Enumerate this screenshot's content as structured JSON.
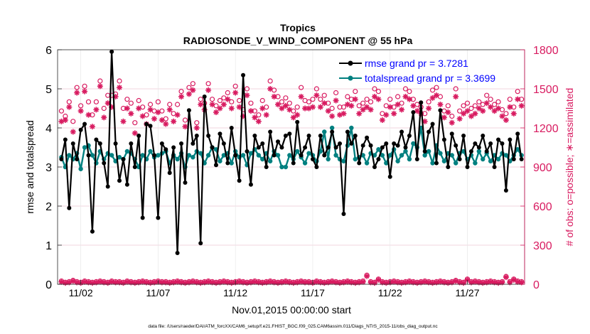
{
  "chart_data": {
    "type": "line",
    "title": "Tropics",
    "subtitle": "RADIOSONDE_V_WIND_COMPONENT @ 55 hPa",
    "xlabel": "Nov.01,2015 00:00:00 start",
    "ylabel_left": "rmse and totalspread",
    "ylabel_right": "# of obs: o=possible; ∗=assimilated",
    "footer": "data file: /Users/raeder/DAI/ATM_forcXX/CAM6_setup/f.e21.FHIST_BGC.f09_025.CAM6assim.011/Diags_NTrS_2015-11/obs_diag_output.nc",
    "x_range": [
      0.5,
      30.7
    ],
    "ylim_left": [
      0,
      6
    ],
    "ylim_right": [
      0,
      1800
    ],
    "x_tick_values": [
      2,
      7,
      12,
      17,
      22,
      27
    ],
    "x_tick_labels": [
      "11/02",
      "11/07",
      "11/12",
      "11/17",
      "11/22",
      "11/27"
    ],
    "y_ticks_left": [
      "0",
      "1",
      "2",
      "3",
      "4",
      "5",
      "6"
    ],
    "y_ticks_right": [
      "0",
      "300",
      "600",
      "900",
      "1200",
      "1500",
      "1800"
    ],
    "legend_position": "top-right",
    "colors": {
      "rmse": "#000000",
      "spread": "#008080",
      "obs": "#d81b60",
      "right_axis": "#d81b60",
      "legend_text": "#0000ff"
    },
    "series": [
      {
        "name": "rmse grand pr = 3.7281",
        "color": "#000000",
        "values": [
          3.2,
          3.7,
          1.95,
          3.6,
          3.2,
          3.95,
          4.1,
          3.3,
          1.35,
          3.7,
          3.6,
          3.1,
          2.5,
          5.95,
          3.6,
          2.65,
          3.2,
          2.55,
          3.6,
          3.0,
          3.8,
          1.7,
          4.1,
          4.05,
          3.3,
          1.7,
          3.6,
          3.45,
          2.85,
          3.5,
          0.8,
          3.6,
          2.6,
          4.45,
          3.6,
          3.8,
          1.05,
          4.8,
          3.8,
          3.5,
          3.05,
          3.85,
          3.6,
          3.1,
          4.0,
          3.3,
          2.65,
          5.35,
          3.4,
          2.55,
          3.8,
          3.5,
          3.6,
          3.0,
          3.9,
          3.3,
          3.65,
          3.5,
          3.8,
          3.85,
          3.1,
          4.15,
          3.3,
          3.5,
          3.8,
          3.2,
          3.0,
          3.8,
          3.3,
          3.5,
          3.9,
          3.5,
          3.6,
          1.8,
          3.9,
          3.6,
          3.8,
          3.1,
          3.55,
          3.75,
          3.55,
          3.0,
          3.2,
          3.5,
          3.6,
          2.75,
          3.6,
          3.55,
          3.9,
          3.5,
          3.8,
          4.4,
          3.2,
          4.65,
          3.4,
          3.9,
          4.1,
          3.1,
          4.45,
          3.7,
          3.0,
          3.85,
          3.55,
          3.2,
          3.8,
          3.0,
          3.4,
          3.6,
          3.5,
          3.8,
          3.4,
          3.6,
          3.0,
          3.7,
          3.6,
          2.4,
          3.7,
          3.2,
          3.85,
          3.2
        ]
      },
      {
        "name": "totalspread grand pr = 3.3699",
        "color": "#008080",
        "values": [
          3.25,
          3.0,
          3.3,
          3.2,
          3.35,
          2.95,
          3.5,
          3.55,
          3.3,
          3.1,
          3.4,
          3.2,
          3.35,
          3.3,
          3.15,
          3.25,
          3.2,
          3.4,
          3.35,
          3.2,
          3.0,
          3.3,
          3.2,
          3.4,
          3.25,
          3.3,
          3.35,
          3.4,
          3.1,
          3.3,
          3.2,
          3.35,
          3.0,
          3.3,
          3.25,
          3.4,
          3.35,
          3.1,
          3.3,
          3.5,
          3.45,
          3.15,
          3.3,
          3.35,
          3.1,
          3.4,
          3.25,
          3.3,
          3.05,
          3.35,
          3.45,
          3.3,
          3.2,
          3.35,
          3.15,
          3.4,
          3.3,
          3.0,
          3.0,
          3.3,
          3.2,
          3.4,
          3.25,
          3.1,
          3.35,
          3.3,
          3.15,
          3.4,
          3.9,
          3.2,
          4.0,
          3.3,
          3.2,
          3.15,
          3.55,
          4.0,
          3.2,
          3.25,
          3.3,
          3.1,
          3.35,
          3.3,
          3.45,
          3.3,
          3.1,
          3.3,
          3.45,
          3.15,
          3.3,
          3.4,
          3.2,
          3.6,
          3.5,
          4.0,
          3.3,
          3.4,
          3.1,
          3.55,
          3.35,
          3.15,
          3.35,
          3.3,
          3.1,
          3.35,
          3.4,
          3.2,
          3.3,
          3.1,
          3.4,
          3.2,
          3.35,
          3.15,
          3.3,
          3.2,
          3.35,
          3.3,
          3.15,
          3.3,
          3.45,
          3.3
        ]
      }
    ],
    "obs_possible": [
      1330,
      1290,
      1400,
      1250,
      1510,
      1370,
      1520,
      1400,
      1300,
      1400,
      1560,
      1350,
      1450,
      1450,
      1460,
      1560,
      1350,
      1420,
      1390,
      1240,
      1410,
      1360,
      1300,
      1380,
      1330,
      1400,
      1330,
      1270,
      1380,
      1310,
      1380,
      1480,
      1260,
      1510,
      1540,
      1240,
      1420,
      1390,
      1540,
      1420,
      1370,
      1410,
      1430,
      1470,
      1400,
      1520,
      1410,
      1340,
      1500,
      1390,
      1330,
      1300,
      1410,
      1360,
      1560,
      1490,
      1440,
      1400,
      1430,
      1390,
      1330,
      1360,
      1510,
      1410,
      1400,
      1420,
      1500,
      1420,
      1450,
      1390,
      1350,
      1470,
      1360,
      1360,
      1440,
      1420,
      1480,
      1370,
      1390,
      1420,
      1400,
      1500,
      1480,
      1310,
      1370,
      1420,
      1360,
      1440,
      1390,
      1500,
      1480,
      1420,
      1380,
      1360,
      1310,
      1400,
      1490,
      1510,
      1440,
      1330,
      1370,
      1290,
      1500,
      1330,
      1370,
      1390,
      1350,
      1370,
      1400,
      1380,
      1450,
      1420,
      1380,
      1400,
      1340,
      1310,
      1420,
      1360,
      1480,
      1420
    ],
    "obs_assimilated": [
      1250,
      1260,
      1360,
      1170,
      1470,
      1330,
      1480,
      1300,
      1210,
      1340,
      1520,
      1280,
      1390,
      1360,
      1440,
      1510,
      1250,
      1350,
      1310,
      1160,
      1350,
      1290,
      1230,
      1340,
      1270,
      1320,
      1260,
      1230,
      1340,
      1250,
      1300,
      1440,
      1210,
      1460,
      1490,
      1200,
      1380,
      1340,
      1490,
      1380,
      1320,
      1350,
      1380,
      1420,
      1350,
      1470,
      1360,
      1290,
      1450,
      1330,
      1280,
      1250,
      1350,
      1300,
      1500,
      1440,
      1380,
      1350,
      1370,
      1340,
      1280,
      1300,
      1440,
      1350,
      1350,
      1360,
      1450,
      1360,
      1390,
      1330,
      1290,
      1410,
      1300,
      1310,
      1380,
      1370,
      1420,
      1310,
      1340,
      1360,
      1340,
      1440,
      1420,
      1260,
      1300,
      1360,
      1310,
      1380,
      1340,
      1440,
      1420,
      1370,
      1330,
      1310,
      1250,
      1350,
      1430,
      1450,
      1380,
      1280,
      1320,
      1240,
      1440,
      1270,
      1310,
      1330,
      1290,
      1310,
      1350,
      1330,
      1390,
      1360,
      1330,
      1350,
      1290,
      1260,
      1360,
      1310,
      1420,
      1370
    ],
    "obs_low_possible": [
      25,
      15,
      20,
      30,
      20,
      15,
      25,
      20,
      15,
      20,
      25,
      20,
      15,
      25,
      20,
      20,
      15,
      25,
      20,
      15,
      20,
      25,
      20,
      15,
      20,
      25,
      20,
      20,
      15,
      20,
      25,
      20,
      15,
      20,
      25,
      20,
      15,
      20,
      25,
      20,
      15,
      20,
      25,
      20,
      15,
      20,
      25,
      20,
      15,
      20,
      25,
      20,
      15,
      20,
      25,
      20,
      15,
      20,
      25,
      20,
      15,
      20,
      25,
      20,
      20,
      15,
      25,
      20,
      15,
      20,
      25,
      20,
      15,
      20,
      25,
      20,
      15,
      20,
      25,
      70,
      20,
      15,
      40,
      20,
      15,
      20,
      25,
      20,
      15,
      20,
      25,
      20,
      15,
      20,
      25,
      20,
      15,
      20,
      25,
      20,
      15,
      20,
      30,
      20,
      15,
      40,
      20,
      25,
      20,
      15,
      20,
      25,
      20,
      15,
      20,
      60,
      20,
      40,
      25,
      20
    ],
    "obs_low_assimilated": [
      18,
      10,
      14,
      24,
      14,
      10,
      18,
      14,
      10,
      14,
      18,
      14,
      10,
      18,
      14,
      14,
      10,
      18,
      14,
      10,
      14,
      18,
      14,
      10,
      14,
      18,
      14,
      14,
      10,
      14,
      18,
      14,
      10,
      14,
      18,
      14,
      10,
      14,
      18,
      14,
      10,
      14,
      18,
      14,
      10,
      14,
      18,
      14,
      10,
      14,
      18,
      14,
      10,
      14,
      18,
      14,
      10,
      14,
      18,
      14,
      10,
      14,
      18,
      14,
      14,
      10,
      18,
      14,
      10,
      14,
      18,
      14,
      10,
      14,
      18,
      14,
      10,
      14,
      18,
      62,
      14,
      10,
      34,
      14,
      10,
      14,
      18,
      14,
      10,
      14,
      18,
      14,
      10,
      14,
      18,
      14,
      10,
      14,
      18,
      14,
      10,
      14,
      24,
      14,
      10,
      34,
      14,
      18,
      14,
      10,
      14,
      18,
      14,
      10,
      14,
      54,
      14,
      34,
      18,
      14
    ]
  }
}
